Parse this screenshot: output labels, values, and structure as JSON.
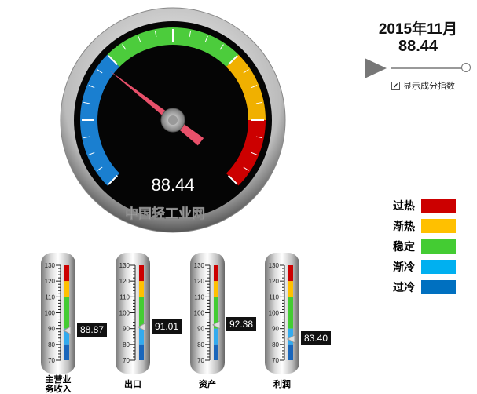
{
  "header": {
    "date": "2015年11月",
    "value": "88.44"
  },
  "controls": {
    "checkbox_label": "显示成分指数",
    "checked": true
  },
  "gauge": {
    "value": 88.44,
    "display": "88.44",
    "min": 70,
    "max": 130,
    "logo_text": "中国轻工业网",
    "bands": [
      {
        "from": 70,
        "to": 90,
        "color": "#1a7fd0"
      },
      {
        "from": 90,
        "to": 110,
        "color": "#4ccc3c"
      },
      {
        "from": 110,
        "to": 120,
        "color": "#f0b000"
      },
      {
        "from": 120,
        "to": 130,
        "color": "#cc0000"
      }
    ]
  },
  "legend": [
    {
      "label": "过热",
      "color": "#cc0000"
    },
    {
      "label": "渐热",
      "color": "#ffc000"
    },
    {
      "label": "稳定",
      "color": "#44cc33"
    },
    {
      "label": "渐冷",
      "color": "#00b0f0"
    },
    {
      "label": "过冷",
      "color": "#0070c0"
    }
  ],
  "thermometers": [
    {
      "label": "主营业务收入",
      "value": 88.87,
      "display": "88.87"
    },
    {
      "label": "出口",
      "value": 91.01,
      "display": "91.01"
    },
    {
      "label": "资产",
      "value": 92.38,
      "display": "92.38"
    },
    {
      "label": "利润",
      "value": 83.4,
      "display": "83.40"
    }
  ],
  "thermo_ticks": [
    "130",
    "120",
    "110",
    "100",
    "90",
    "80",
    "70"
  ]
}
